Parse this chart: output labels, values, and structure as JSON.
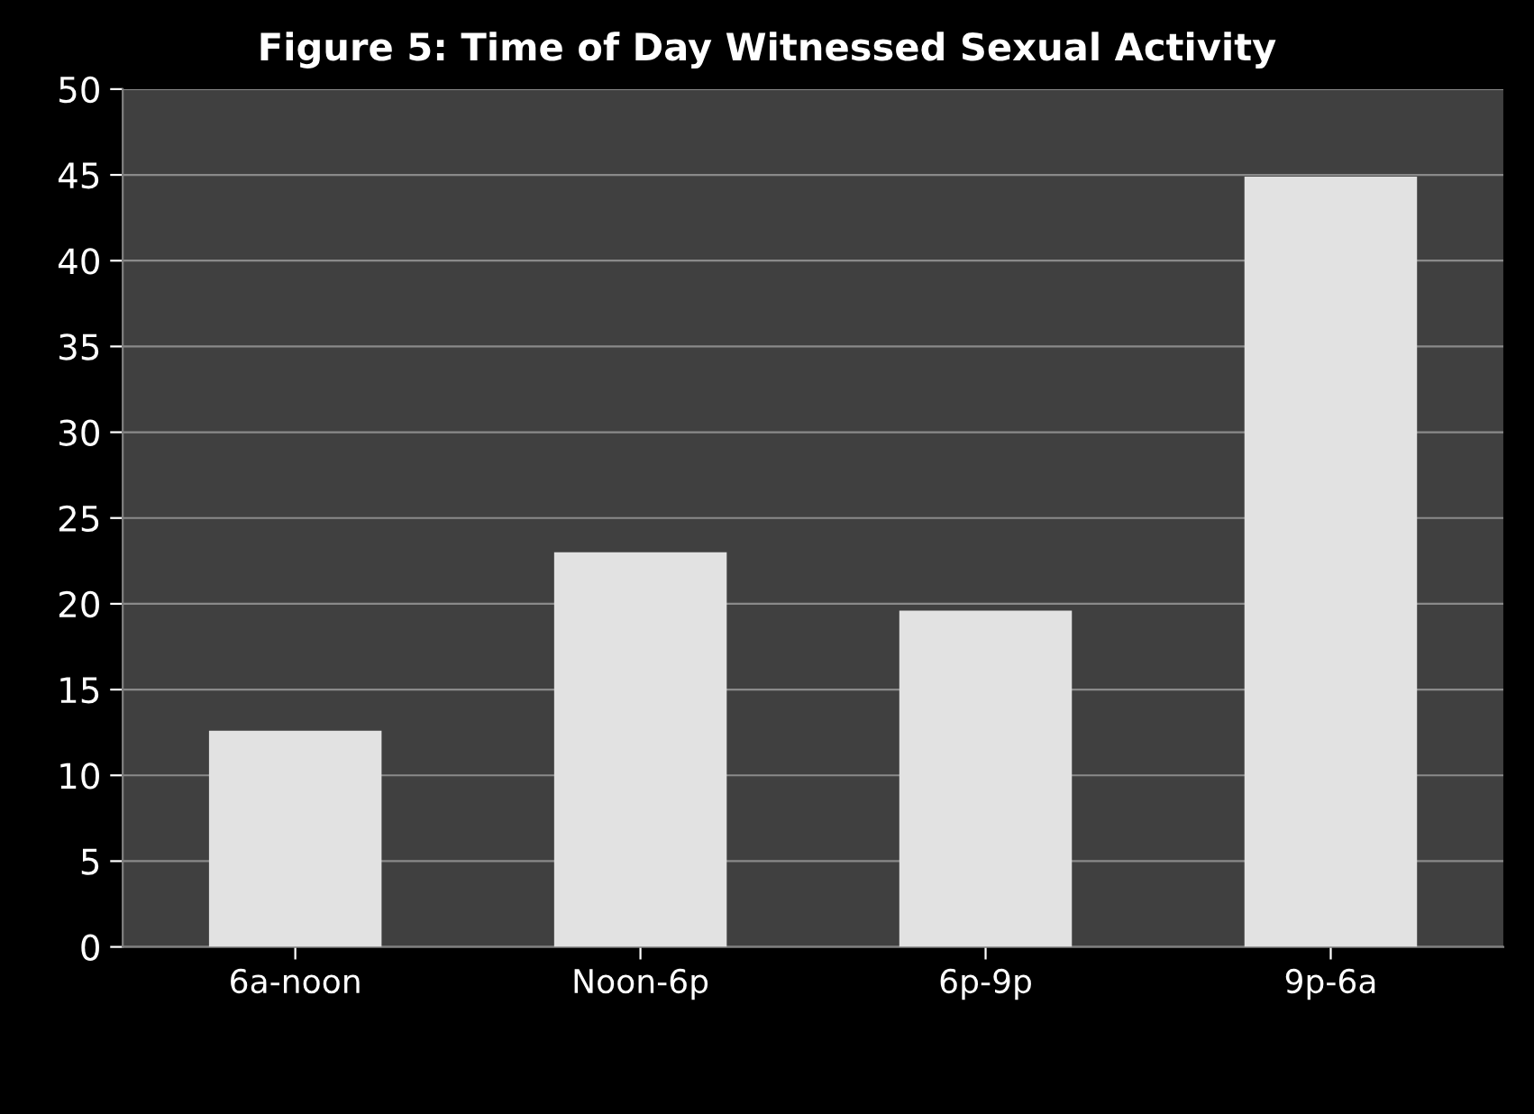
{
  "chart_data": {
    "type": "bar",
    "title": "Figure 5: Time of Day Witnessed Sexual Activity",
    "categories": [
      "6a-noon",
      "Noon-6p",
      "6p-9p",
      "9p-6a"
    ],
    "values": [
      12.6,
      23.0,
      19.6,
      44.9
    ],
    "color": "#e2e2e2",
    "ylim": [
      0,
      50
    ],
    "yticks": [
      0,
      5,
      10,
      15,
      20,
      25,
      30,
      35,
      40,
      45,
      50
    ],
    "grid": "y"
  }
}
